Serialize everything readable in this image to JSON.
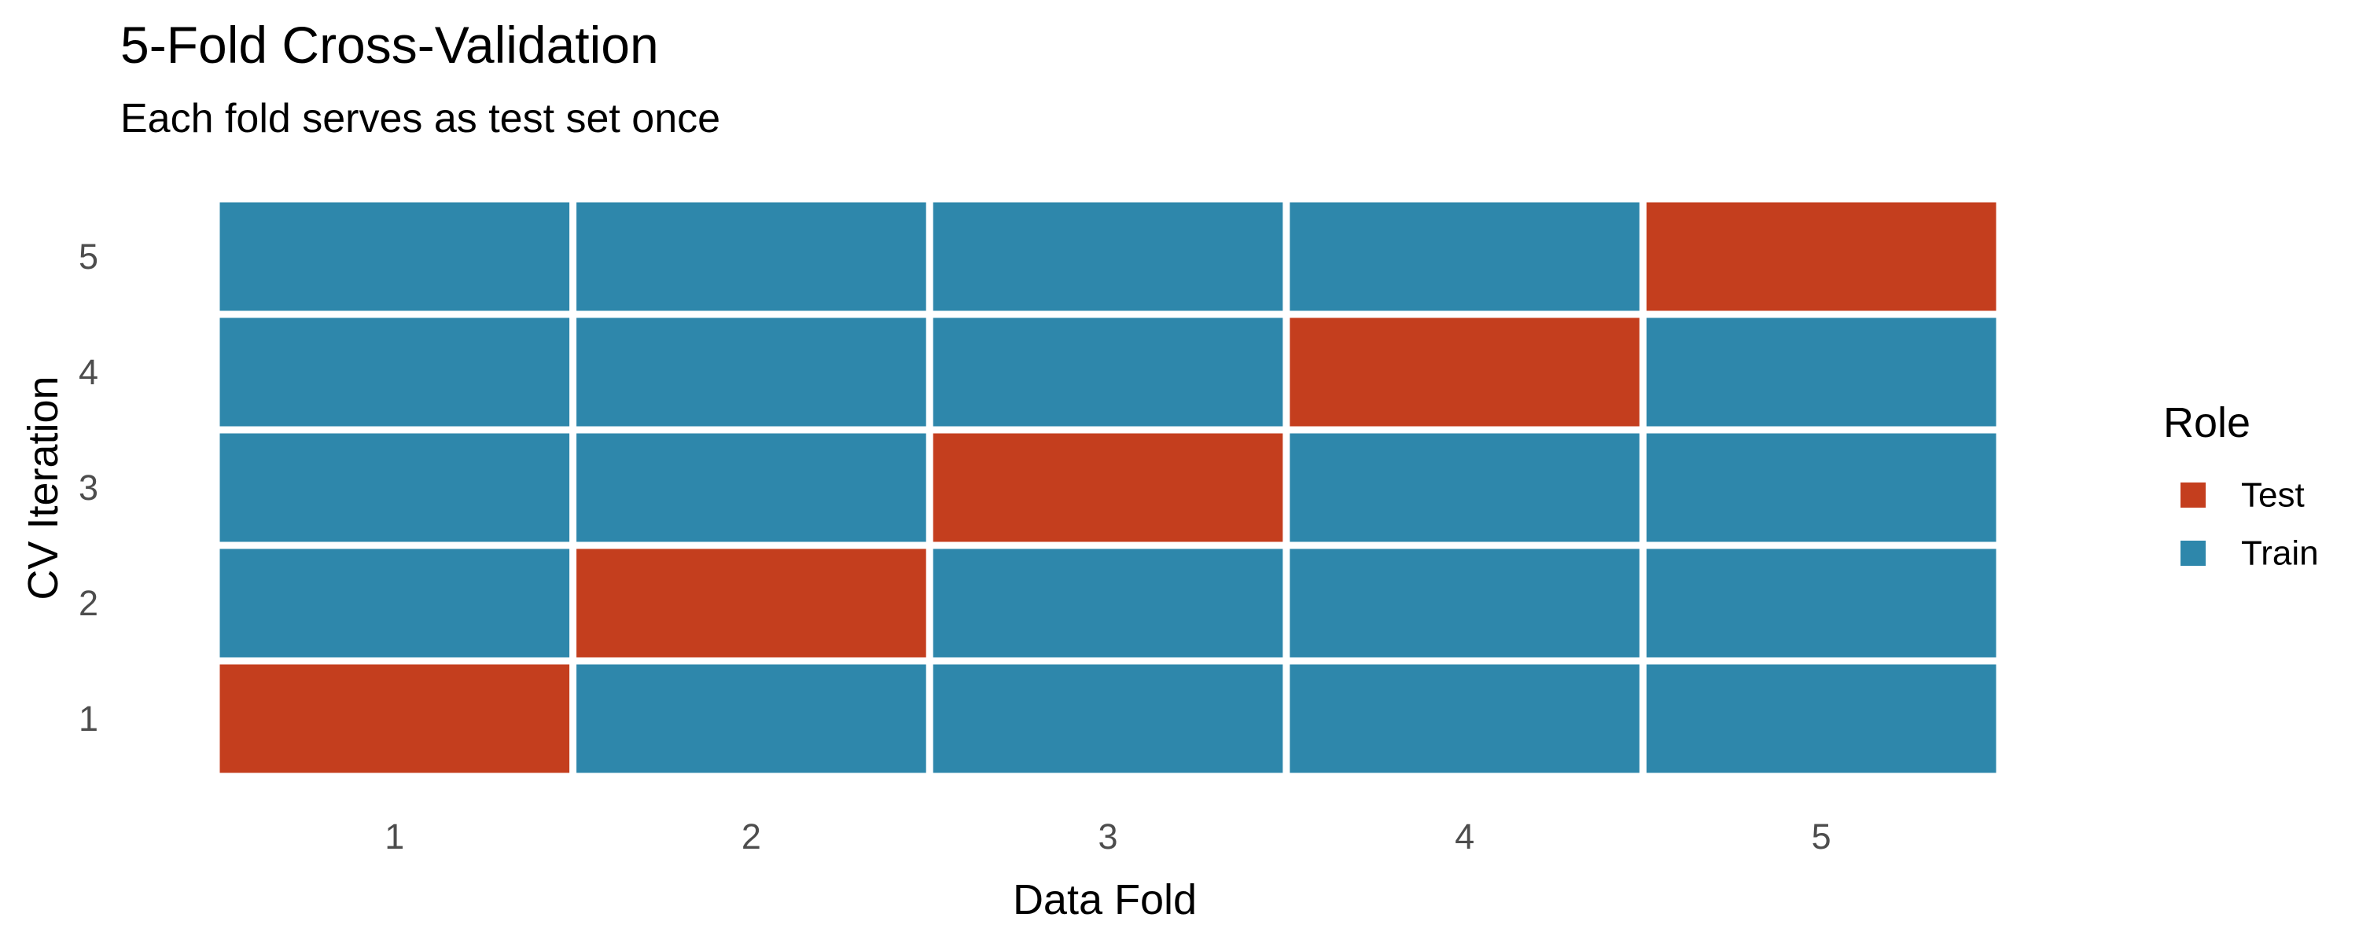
{
  "chart_data": {
    "type": "heatmap",
    "title": "5-Fold Cross-Validation",
    "subtitle": "Each fold serves as test set once",
    "xlabel": "Data Fold",
    "ylabel": "CV Iteration",
    "x_categories": [
      "1",
      "2",
      "3",
      "4",
      "5"
    ],
    "y_categories": [
      "1",
      "2",
      "3",
      "4",
      "5"
    ],
    "grid": false,
    "legend": {
      "title": "Role",
      "position": "right",
      "items": [
        {
          "label": "Test",
          "color": "#C43E1E"
        },
        {
          "label": "Train",
          "color": "#2E87AB"
        }
      ]
    },
    "cells": [
      {
        "fold": 1,
        "iteration": 1,
        "role": "Test"
      },
      {
        "fold": 2,
        "iteration": 1,
        "role": "Train"
      },
      {
        "fold": 3,
        "iteration": 1,
        "role": "Train"
      },
      {
        "fold": 4,
        "iteration": 1,
        "role": "Train"
      },
      {
        "fold": 5,
        "iteration": 1,
        "role": "Train"
      },
      {
        "fold": 1,
        "iteration": 2,
        "role": "Train"
      },
      {
        "fold": 2,
        "iteration": 2,
        "role": "Test"
      },
      {
        "fold": 3,
        "iteration": 2,
        "role": "Train"
      },
      {
        "fold": 4,
        "iteration": 2,
        "role": "Train"
      },
      {
        "fold": 5,
        "iteration": 2,
        "role": "Train"
      },
      {
        "fold": 1,
        "iteration": 3,
        "role": "Train"
      },
      {
        "fold": 2,
        "iteration": 3,
        "role": "Train"
      },
      {
        "fold": 3,
        "iteration": 3,
        "role": "Test"
      },
      {
        "fold": 4,
        "iteration": 3,
        "role": "Train"
      },
      {
        "fold": 5,
        "iteration": 3,
        "role": "Train"
      },
      {
        "fold": 1,
        "iteration": 4,
        "role": "Train"
      },
      {
        "fold": 2,
        "iteration": 4,
        "role": "Train"
      },
      {
        "fold": 3,
        "iteration": 4,
        "role": "Train"
      },
      {
        "fold": 4,
        "iteration": 4,
        "role": "Test"
      },
      {
        "fold": 5,
        "iteration": 4,
        "role": "Train"
      },
      {
        "fold": 1,
        "iteration": 5,
        "role": "Train"
      },
      {
        "fold": 2,
        "iteration": 5,
        "role": "Train"
      },
      {
        "fold": 3,
        "iteration": 5,
        "role": "Train"
      },
      {
        "fold": 4,
        "iteration": 5,
        "role": "Train"
      },
      {
        "fold": 5,
        "iteration": 5,
        "role": "Test"
      }
    ]
  }
}
